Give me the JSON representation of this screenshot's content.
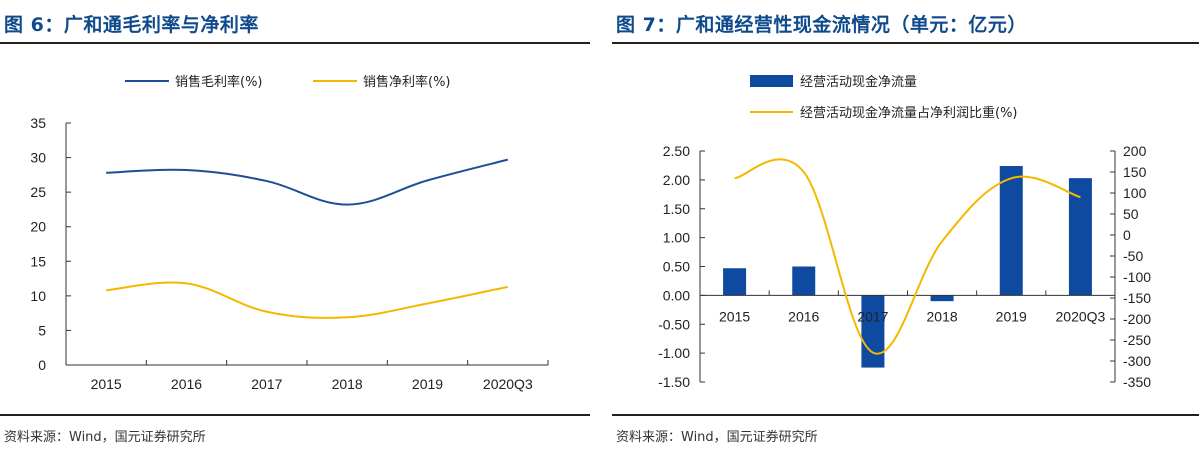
{
  "left": {
    "title": "图 6：广和通毛利率与净利率",
    "source": "资料来源：Wind，国元证券研究所",
    "chart_data": {
      "type": "line",
      "title": "",
      "xlabel": "",
      "ylabel": "",
      "categories": [
        "2015",
        "2016",
        "2017",
        "2018",
        "2019",
        "2020Q3"
      ],
      "ylim": [
        0,
        35
      ],
      "yticks": [
        "0",
        "5",
        "10",
        "15",
        "20",
        "25",
        "30",
        "35"
      ],
      "series": [
        {
          "name": "销售毛利率(%)",
          "color": "#1f4e96",
          "values": [
            27.8,
            28.2,
            26.6,
            23.2,
            26.7,
            29.7
          ]
        },
        {
          "name": "销售净利率(%)",
          "color": "#f5b800",
          "values": [
            10.8,
            11.8,
            7.7,
            6.9,
            8.9,
            11.3
          ]
        }
      ],
      "legend": "top",
      "grid": false
    }
  },
  "right": {
    "title": "图 7：广和通经营性现金流情况（单元：亿元）",
    "source": "资料来源：Wind，国元证券研究所",
    "chart_data": {
      "type": "bar",
      "title": "",
      "xlabel": "",
      "categories": [
        "2015",
        "2016",
        "2017",
        "2018",
        "2019",
        "2020Q3"
      ],
      "series": [
        {
          "name": "经营活动现金净流量",
          "type": "bar",
          "axis": "left",
          "color": "#0e4aa0",
          "values": [
            0.47,
            0.5,
            -1.25,
            -0.1,
            2.24,
            2.03
          ]
        },
        {
          "name": "经营活动现金净流量占净利润比重(%)",
          "type": "line",
          "axis": "right",
          "color": "#f5b800",
          "values": [
            135,
            150,
            -280,
            -15,
            135,
            90
          ]
        }
      ],
      "ylim_left": [
        -1.5,
        2.5
      ],
      "yticks_left": [
        "-1.50",
        "-1.00",
        "-0.50",
        "0.00",
        "0.50",
        "1.00",
        "1.50",
        "2.00",
        "2.50"
      ],
      "ylim_right": [
        -350,
        200
      ],
      "yticks_right": [
        "-350",
        "-300",
        "-250",
        "-200",
        "-150",
        "-100",
        "-50",
        "0",
        "50",
        "100",
        "150",
        "200"
      ],
      "legend": "top-left",
      "grid": false
    }
  }
}
